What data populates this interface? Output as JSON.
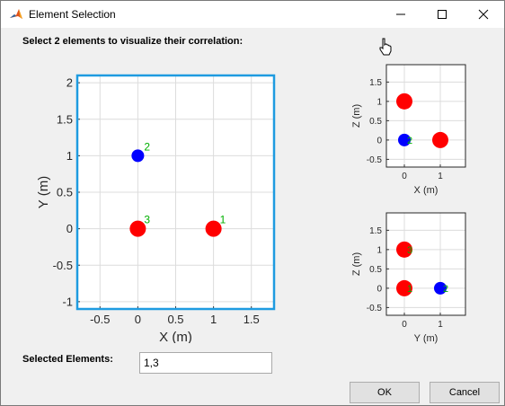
{
  "window": {
    "title": "Element Selection",
    "app_icon": "matlab-icon",
    "controls": [
      "minimize-icon",
      "maximize-icon",
      "close-icon"
    ]
  },
  "instruction": "Select 2 elements to visualize their correlation:",
  "selected": {
    "label": "Selected Elements:",
    "value": "1,3"
  },
  "buttons": {
    "ok": "OK",
    "cancel": "Cancel"
  },
  "colors": {
    "selected_point": "#ff0000",
    "unselected_point": "#0000ff",
    "point_label": "#00b000",
    "axes_highlight": "#1e9be0"
  },
  "chart_data": [
    {
      "type": "scatter",
      "view": "main",
      "xlabel": "X (m)",
      "ylabel": "Y (m)",
      "xlim": [
        -0.8,
        1.8
      ],
      "ylim": [
        -1.1,
        2.1
      ],
      "xticks": [
        -0.5,
        0,
        0.5,
        1,
        1.5
      ],
      "xtick_labels": [
        "-0.5",
        "0",
        "0.5",
        "1",
        "1.5"
      ],
      "yticks": [
        -1,
        -0.5,
        0,
        0.5,
        1,
        1.5,
        2
      ],
      "ytick_labels": [
        "-1",
        "-0.5",
        "0",
        "0.5",
        "1",
        "1.5",
        "2"
      ],
      "grid": true,
      "points": [
        {
          "label": "1",
          "x": 1,
          "y": 0,
          "selected": true
        },
        {
          "label": "2",
          "x": 0,
          "y": 1,
          "selected": false
        },
        {
          "label": "3",
          "x": 0,
          "y": 0,
          "selected": true
        }
      ]
    },
    {
      "type": "scatter",
      "view": "xz",
      "xlabel": "X (m)",
      "ylabel": "Z (m)",
      "xlim": [
        -0.5,
        1.7
      ],
      "ylim": [
        -0.7,
        1.95
      ],
      "xticks": [
        0,
        1
      ],
      "xtick_labels": [
        "0",
        "1"
      ],
      "yticks": [
        -0.5,
        0,
        0.5,
        1,
        1.5
      ],
      "ytick_labels": [
        "-0.5",
        "0",
        "0.5",
        "1",
        "1.5"
      ],
      "grid": true,
      "points": [
        {
          "label": "",
          "x": 0,
          "y": 1,
          "selected": true
        },
        {
          "label": "2",
          "x": 0,
          "y": 0,
          "selected": false
        },
        {
          "label": "",
          "x": 1,
          "y": 0,
          "selected": true
        }
      ]
    },
    {
      "type": "scatter",
      "view": "yz",
      "xlabel": "Y (m)",
      "ylabel": "Z (m)",
      "xlim": [
        -0.5,
        1.7
      ],
      "ylim": [
        -0.7,
        1.95
      ],
      "xticks": [
        0,
        1
      ],
      "xtick_labels": [
        "0",
        "1"
      ],
      "yticks": [
        -0.5,
        0,
        0.5,
        1,
        1.5
      ],
      "ytick_labels": [
        "-0.5",
        "0",
        "0.5",
        "1",
        "1.5"
      ],
      "grid": true,
      "points": [
        {
          "label": "3",
          "x": 0,
          "y": 1,
          "selected": true
        },
        {
          "label": "1",
          "x": 0,
          "y": 0,
          "selected": true
        },
        {
          "label": "2",
          "x": 1,
          "y": 0,
          "selected": false
        }
      ]
    }
  ]
}
